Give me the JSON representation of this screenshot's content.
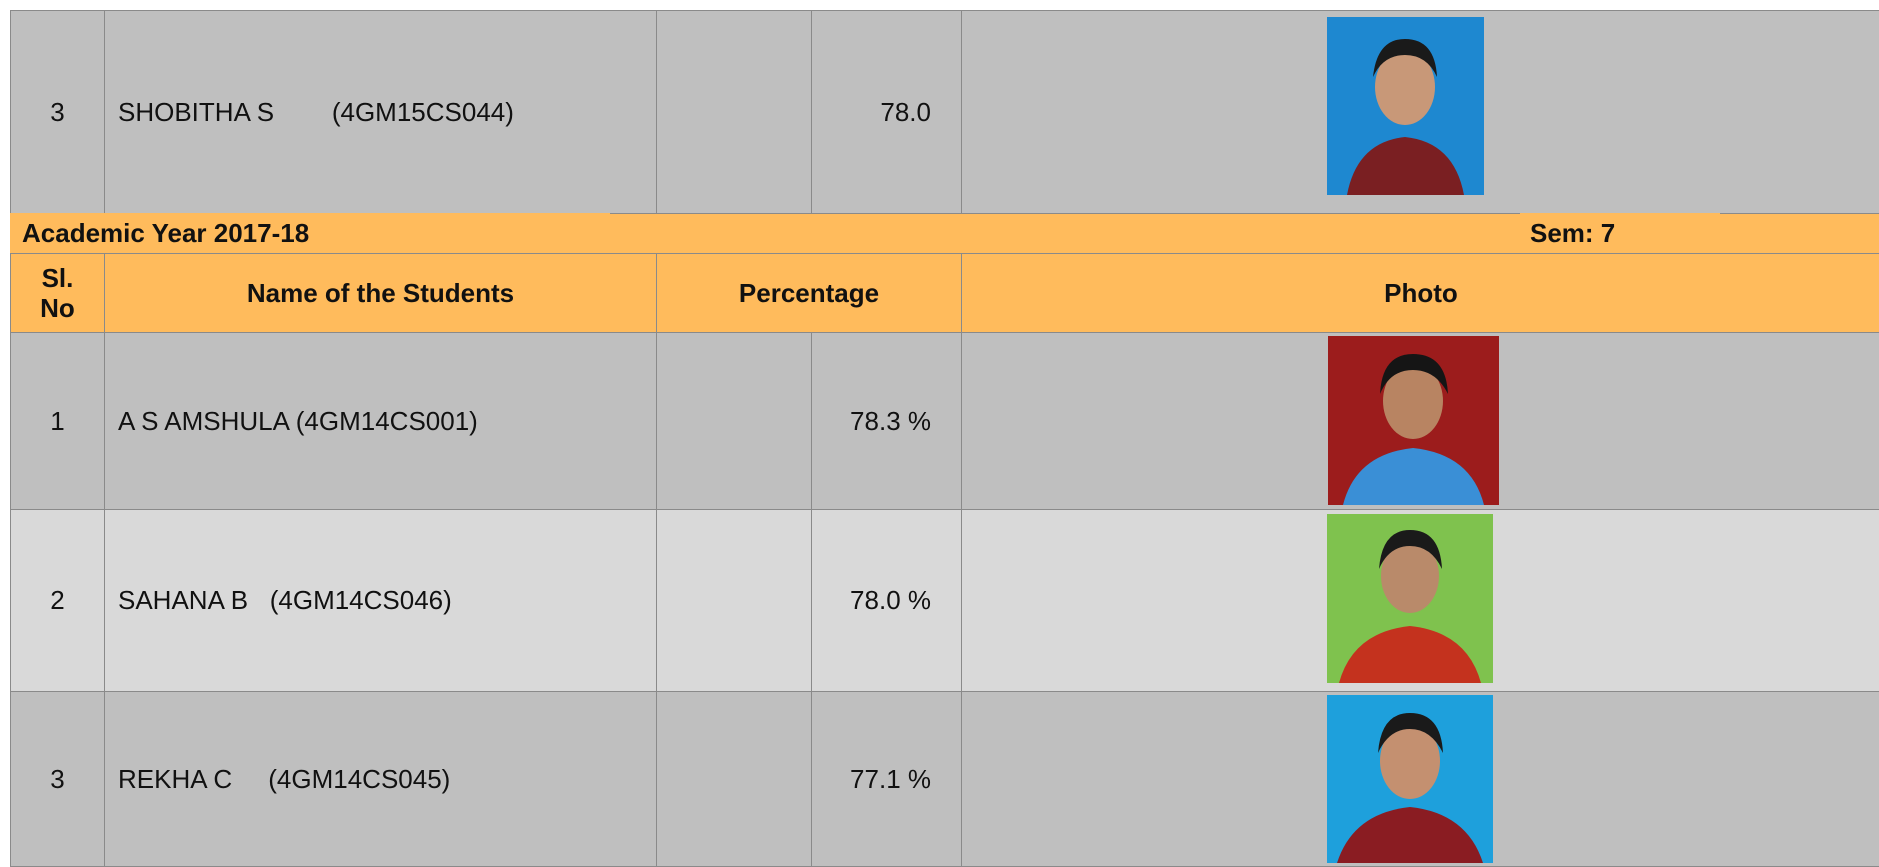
{
  "top_row": {
    "sl_no": "3",
    "name": "SHOBITHA S        (4GM15CS044)",
    "percentage": "78.0"
  },
  "section": {
    "academic_year": "Academic Year 2017-18",
    "sem": "Sem: 7"
  },
  "table": {
    "headers": [
      "Sl.\nNo",
      "Name of the Students",
      "Percentage",
      "Photo"
    ],
    "rows": [
      [
        "1",
        "A S AMSHULA (4GM14CS001)",
        "78.3 %"
      ],
      [
        "2",
        "SAHANA B   (4GM14CS046)",
        "78.0 %"
      ],
      [
        "3",
        "REKHA C     (4GM14CS045)",
        "77.1 %"
      ]
    ]
  }
}
